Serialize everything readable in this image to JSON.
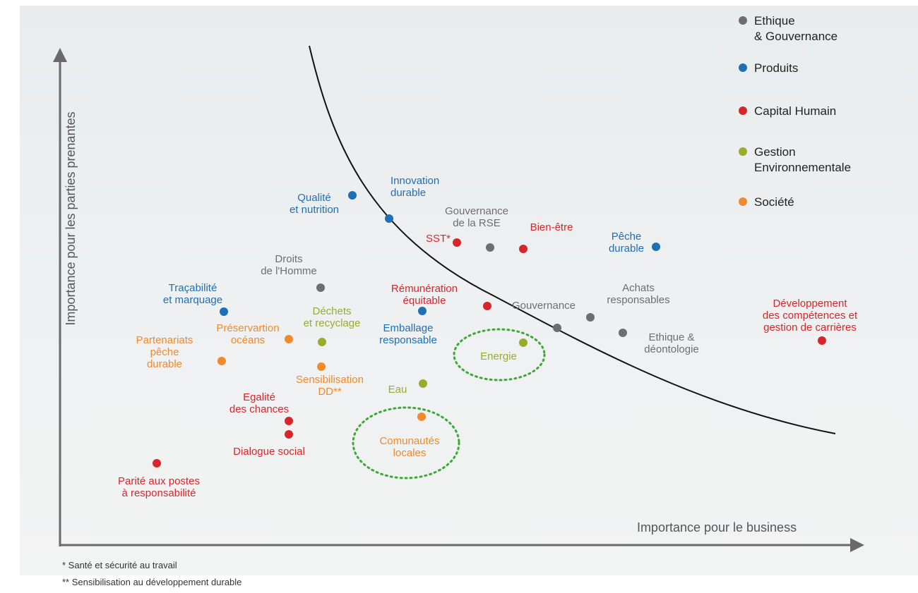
{
  "axes": {
    "y_label": "Importance pour les parties prenantes",
    "x_label": "Importance pour le business"
  },
  "legend": [
    {
      "label": [
        "Ethique",
        "& Gouvernance"
      ],
      "color": "#6e6e6e"
    },
    {
      "label": [
        "Produits"
      ],
      "color": "#1f6fb5"
    },
    {
      "label": [
        "Capital Humain"
      ],
      "color": "#d7262b"
    },
    {
      "label": [
        "Gestion",
        "Environnementale"
      ],
      "color": "#9aab2b"
    },
    {
      "label": [
        "Société"
      ],
      "color": "#ef8a2d"
    }
  ],
  "nodes": [
    {
      "label": [
        "Qualité",
        "et nutrition"
      ],
      "group": 1
    },
    {
      "label": [
        "Innovation",
        "durable"
      ],
      "group": 1
    },
    {
      "label": [
        "Gouvernance",
        "de la RSE"
      ],
      "group": 0
    },
    {
      "label": [
        "SST*"
      ],
      "group": 2
    },
    {
      "label": [
        "Bien-être"
      ],
      "group": 2
    },
    {
      "label": [
        "Pêche",
        "durable"
      ],
      "group": 1
    },
    {
      "label": [
        "Droits",
        "de l'Homme"
      ],
      "group": 0
    },
    {
      "label": [
        "Traçabilité",
        "et marquage"
      ],
      "group": 1
    },
    {
      "label": [
        "Rémunération",
        "équitable"
      ],
      "group": 2
    },
    {
      "label": [
        "Emballage",
        "responsable"
      ],
      "group": 1
    },
    {
      "label": [
        "Gouvernance"
      ],
      "group": 0
    },
    {
      "label": [
        "Achats",
        "responsables"
      ],
      "group": 0
    },
    {
      "label": [
        "Ethique &",
        "déontologie"
      ],
      "group": 0
    },
    {
      "label": [
        "Développement",
        "des compétences et",
        "gestion de carrières"
      ],
      "group": 2
    },
    {
      "label": [
        "Déchets",
        "et recyclage"
      ],
      "group": 3
    },
    {
      "label": [
        "Energie"
      ],
      "group": 3
    },
    {
      "label": [
        "Préservartion",
        "océans"
      ],
      "group": 4
    },
    {
      "label": [
        "Partenariats",
        "pêche",
        "durable"
      ],
      "group": 4
    },
    {
      "label": [
        "Sensibilisation",
        "DD**"
      ],
      "group": 4
    },
    {
      "label": [
        "Eau"
      ],
      "group": 3
    },
    {
      "label": [
        "Comunautés",
        "locales"
      ],
      "group": 4
    },
    {
      "label": [
        "Egalité",
        "des chances"
      ],
      "group": 2
    },
    {
      "label": [
        "Dialogue social"
      ],
      "group": 2
    },
    {
      "label": [
        "Parité aux postes",
        "à responsabilité"
      ],
      "group": 2
    }
  ],
  "footnotes": [
    "* Santé et sécurité au travail",
    "** Sensibilisation au développement durable"
  ]
}
